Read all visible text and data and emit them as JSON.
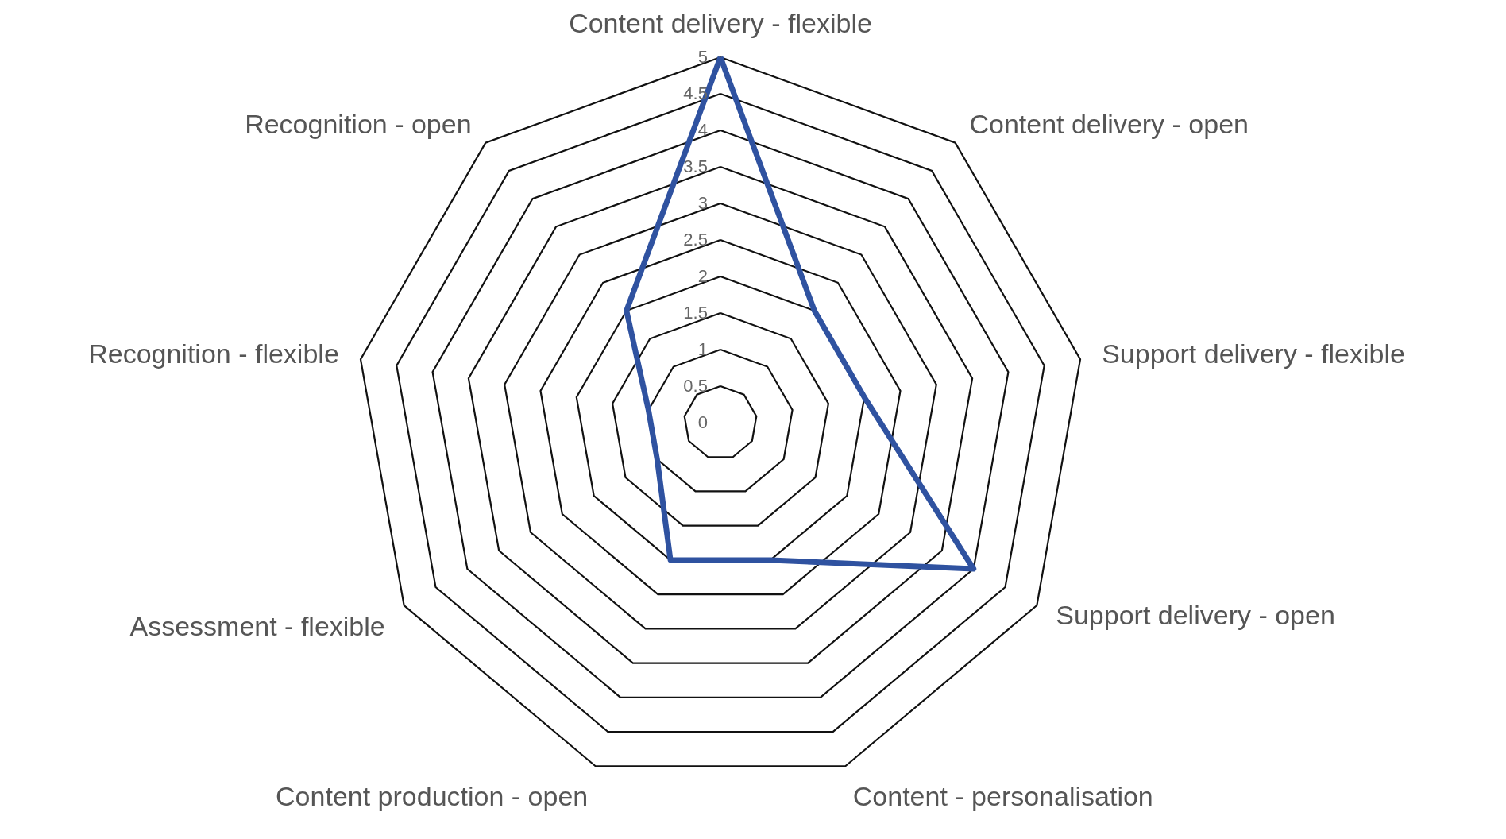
{
  "chart_data": {
    "type": "radar",
    "categories": [
      "Content delivery - flexible",
      "Content delivery - open",
      "Support delivery - flexible",
      "Support delivery - open",
      "Content - personalisation",
      "Content production - open",
      "Assessment - flexible",
      "Recognition - flexible",
      "Recognition - open"
    ],
    "series": [
      {
        "color": "#2f52a0",
        "values": [
          5,
          2,
          2,
          4,
          2,
          2,
          1,
          1,
          2
        ]
      }
    ],
    "ylim": [
      0,
      5
    ],
    "yticks": [
      0,
      0.5,
      1,
      1.5,
      2,
      2.5,
      3,
      3.5,
      4,
      4.5,
      5
    ],
    "grid": true
  }
}
